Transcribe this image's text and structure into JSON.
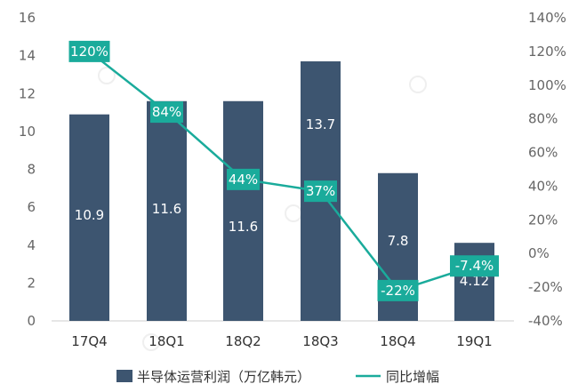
{
  "chart_data": {
    "type": "bar",
    "categories": [
      "17Q4",
      "18Q1",
      "18Q2",
      "18Q3",
      "18Q4",
      "19Q1"
    ],
    "series": [
      {
        "name": "半导体运营利润（万亿韩元）",
        "type": "bar",
        "axis": "left",
        "values": [
          10.9,
          11.6,
          11.6,
          13.7,
          7.8,
          4.12
        ],
        "labels": [
          "10.9",
          "11.6",
          "11.6",
          "13.7",
          "7.8",
          "4.12"
        ],
        "color": "#3d5570"
      },
      {
        "name": "同比增幅",
        "type": "line",
        "axis": "right",
        "values": [
          120,
          84,
          44,
          37,
          -22,
          -7.4
        ],
        "labels": [
          "120%",
          "84%",
          "44%",
          "37%",
          "-22%",
          "-7.4%"
        ],
        "color": "#1aab9b"
      }
    ],
    "y_left": {
      "min": 0,
      "max": 16,
      "ticks": [
        "0",
        "2",
        "4",
        "6",
        "8",
        "10",
        "12",
        "14",
        "16"
      ]
    },
    "y_right": {
      "min": -40,
      "max": 140,
      "ticks": [
        "-40%",
        "-20%",
        "0%",
        "20%",
        "40%",
        "60%",
        "80%",
        "100%",
        "120%",
        "140%"
      ]
    },
    "legend_position": "bottom",
    "grid": false
  }
}
